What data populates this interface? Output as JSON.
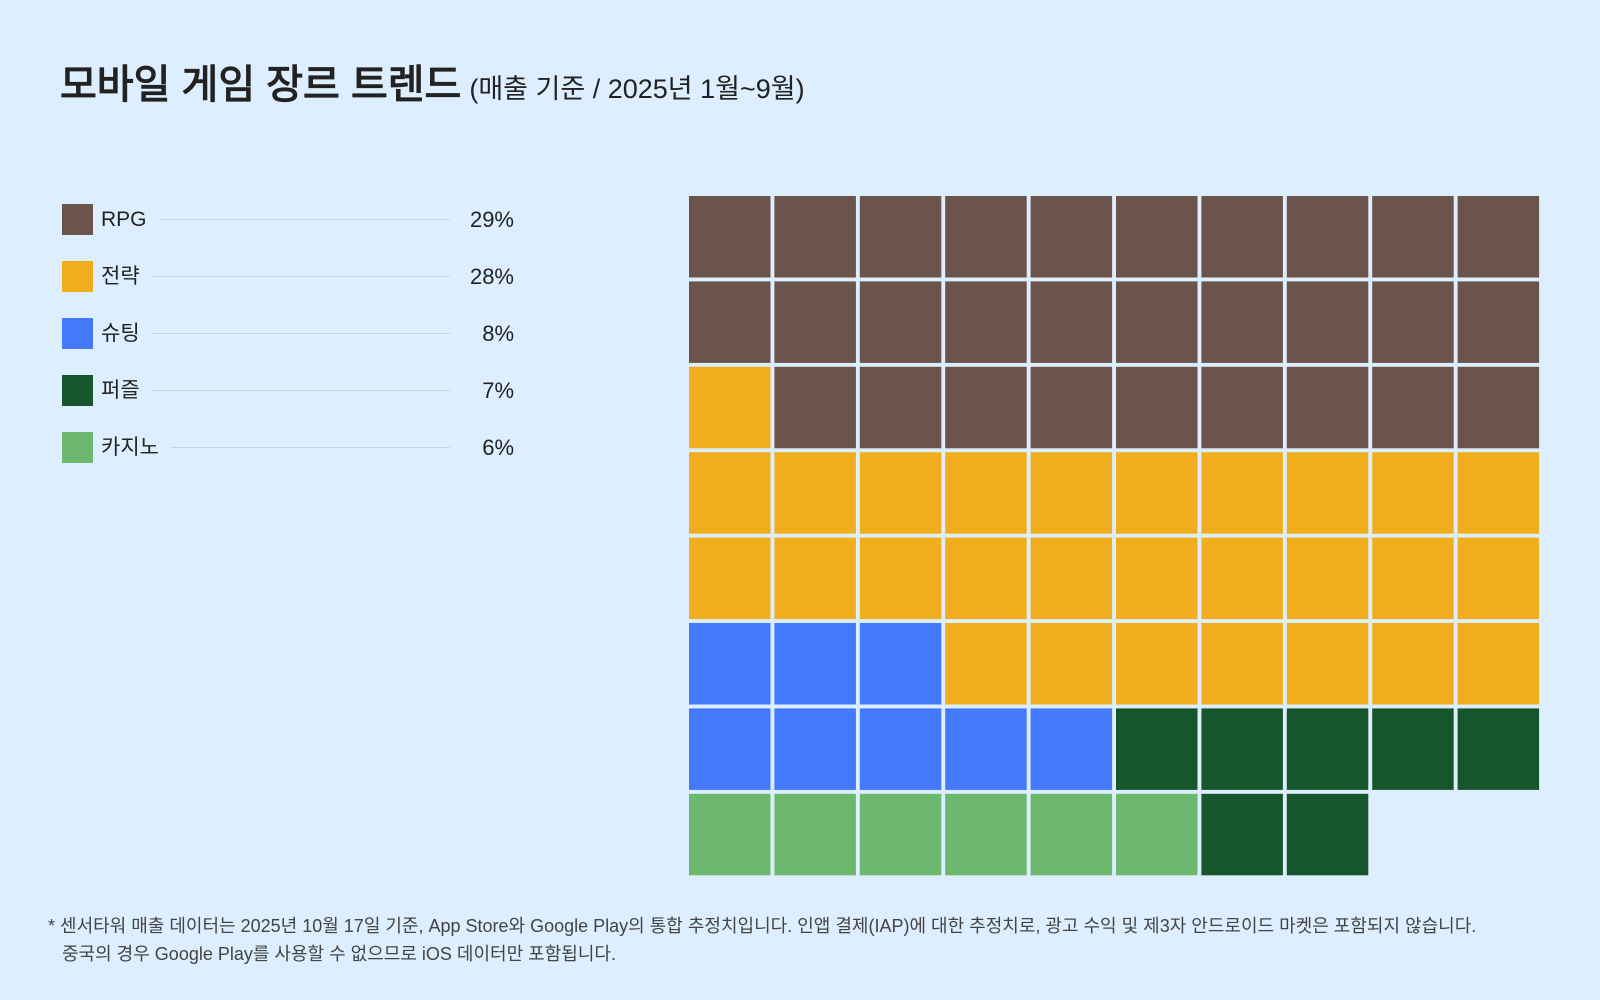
{
  "title": {
    "main": "모바일 게임 장르 트렌드",
    "sub": "(매출 기준 / 2025년 1월~9월)"
  },
  "chart_data": {
    "type": "waffle",
    "grid": {
      "rows": 8,
      "columns": 10
    },
    "unit": "1 cell = 1%",
    "categories": [
      "RPG",
      "전략",
      "슈팅",
      "퍼즐",
      "카지노"
    ],
    "values": [
      29,
      28,
      8,
      7,
      6
    ],
    "value_labels": [
      "29%",
      "28%",
      "8%",
      "7%",
      "6%"
    ],
    "colors": [
      "#6b544b",
      "#f0ae1c",
      "#4479fc",
      "#17552b",
      "#6db86f"
    ],
    "legend_placement": "left"
  },
  "footnote": {
    "line1": "* 센서타워 매출 데이터는 2025년 10월 17일 기준, App Store와 Google Play의 통합 추정치입니다. 인앱 결제(IAP)에 대한 추정치로, 광고 수익 및 제3자 안드로이드 마켓은 포함되지 않습니다.",
    "line2": "중국의 경우 Google Play를 사용할 수 없으므로 iOS 데이터만 포함됩니다."
  }
}
